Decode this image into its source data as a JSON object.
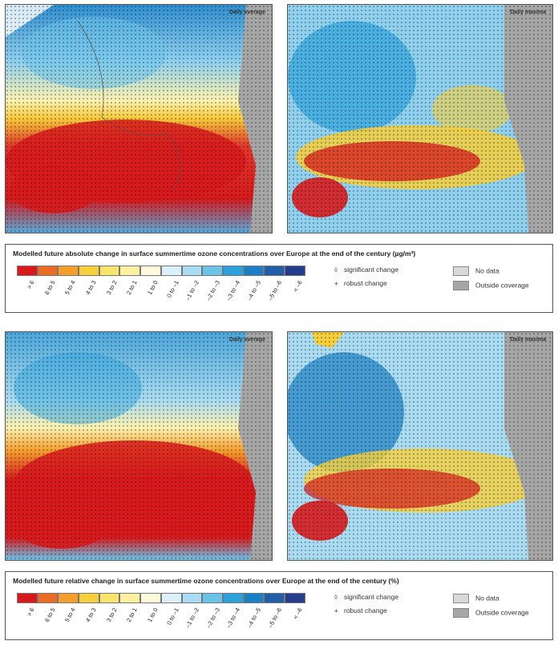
{
  "panels": {
    "top_left_label": "Daily average",
    "top_right_label": "Daily maxima",
    "bottom_left_label": "Daily average",
    "bottom_right_label": "Daily maxima"
  },
  "legend_absolute": {
    "title": "Modelled future absolute change in surface summertime ozone concentrations over Europe at the end of the century (µg/m³)"
  },
  "legend_relative": {
    "title": "Modelled future relative change in surface summertime ozone concentrations over Europe at the end of the century (%)"
  },
  "scale": [
    {
      "label": "> 6",
      "color": "#d7191c"
    },
    {
      "label": "6 to 5",
      "color": "#ec6b24"
    },
    {
      "label": "5 to 4",
      "color": "#f59e2e"
    },
    {
      "label": "4 to 3",
      "color": "#f7cf3a"
    },
    {
      "label": "3 to 2",
      "color": "#f8e46a"
    },
    {
      "label": "2 to 1",
      "color": "#fbf19f"
    },
    {
      "label": "1 to 0",
      "color": "#fefbdc"
    },
    {
      "label": "0 to –1",
      "color": "#dcf0fa"
    },
    {
      "label": "–1 to –2",
      "color": "#a9dcf2"
    },
    {
      "label": "–2 to –3",
      "color": "#6cc3ea"
    },
    {
      "label": "–3 to –4",
      "color": "#2ba2dc"
    },
    {
      "label": "–4 to –5",
      "color": "#1a7fc4"
    },
    {
      "label": "–5 to –6",
      "color": "#235ea8"
    },
    {
      "label": "< –6",
      "color": "#243d8c"
    }
  ],
  "symbols": {
    "significant_glyph": "◊",
    "significant_label": "significant change",
    "robust_glyph": "+",
    "robust_label": "robust change"
  },
  "boxes": {
    "no_data_label": "No data",
    "no_data_color": "#d9d9d9",
    "outside_label": "Outside coverage",
    "outside_color": "#a6a6a6"
  }
}
